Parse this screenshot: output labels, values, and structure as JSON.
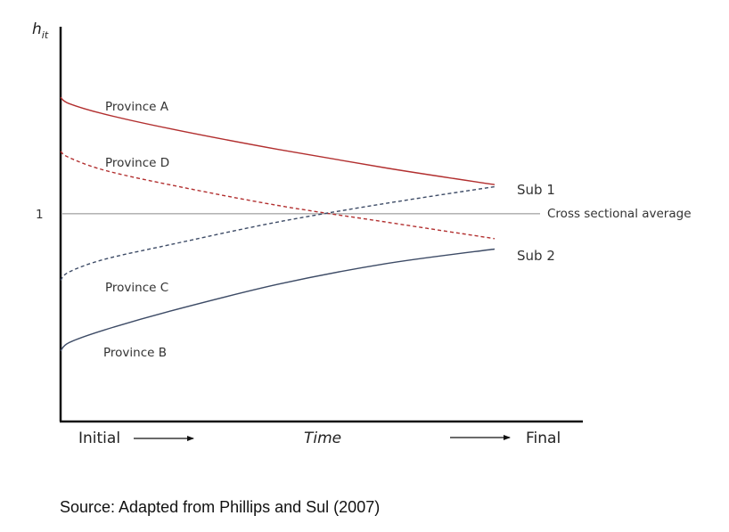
{
  "chart_data": {
    "type": "line",
    "title": "",
    "ylabel_main": "h",
    "ylabel_sub": "it",
    "y_tick_label": "1",
    "y_tick_value": 1,
    "x_axis": {
      "start_label": "Initial",
      "middle_label": "Time",
      "end_label": "Final"
    },
    "reference_line": {
      "name": "Cross sectional average",
      "value": 1.0
    },
    "x_range": [
      0,
      1
    ],
    "y_range": [
      0.0,
      1.9
    ],
    "series": [
      {
        "name": "Province A",
        "style": "solid",
        "color": "#b22f2f",
        "points": [
          [
            0.0,
            1.56
          ],
          [
            0.02,
            1.53
          ],
          [
            0.1,
            1.48
          ],
          [
            0.25,
            1.41
          ],
          [
            0.5,
            1.31
          ],
          [
            0.75,
            1.22
          ],
          [
            1.0,
            1.14
          ]
        ]
      },
      {
        "name": "Province D",
        "style": "dashed",
        "color": "#b22f2f",
        "points": [
          [
            0.0,
            1.3
          ],
          [
            0.02,
            1.27
          ],
          [
            0.1,
            1.21
          ],
          [
            0.25,
            1.14
          ],
          [
            0.5,
            1.04
          ],
          [
            0.75,
            0.96
          ],
          [
            1.0,
            0.88
          ]
        ]
      },
      {
        "name": "Province C",
        "style": "dashed",
        "color": "#3d4b66",
        "points": [
          [
            0.0,
            0.68
          ],
          [
            0.02,
            0.72
          ],
          [
            0.1,
            0.78
          ],
          [
            0.25,
            0.85
          ],
          [
            0.5,
            0.96
          ],
          [
            0.75,
            1.05
          ],
          [
            1.0,
            1.13
          ]
        ]
      },
      {
        "name": "Province B",
        "style": "solid",
        "color": "#3d4b66",
        "points": [
          [
            0.0,
            0.34
          ],
          [
            0.02,
            0.38
          ],
          [
            0.1,
            0.44
          ],
          [
            0.25,
            0.53
          ],
          [
            0.5,
            0.66
          ],
          [
            0.75,
            0.76
          ],
          [
            1.0,
            0.83
          ]
        ]
      }
    ],
    "groups": [
      {
        "name": "Sub 1",
        "value": 1.17
      },
      {
        "name": "Sub 2",
        "value": 0.86
      }
    ]
  },
  "source_note": "Source: Adapted from Phillips and Sul (2007)"
}
